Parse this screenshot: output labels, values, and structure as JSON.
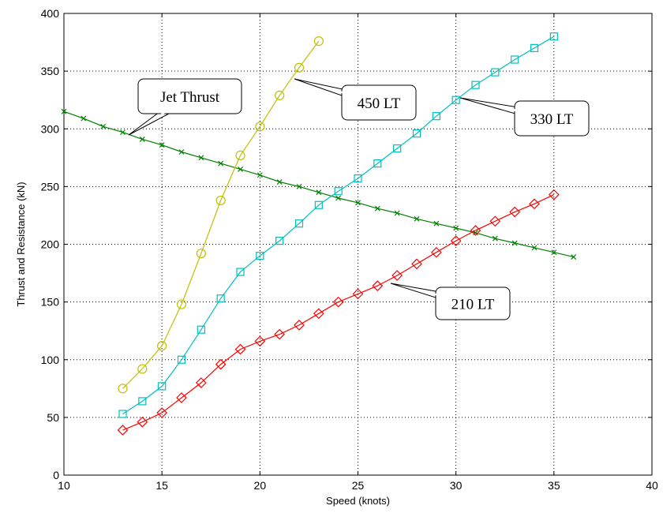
{
  "chart_data": {
    "type": "line",
    "xlabel": "Speed (knots)",
    "ylabel": "Thrust and Resistance (kN)",
    "xlim": [
      10,
      40
    ],
    "ylim": [
      0,
      400
    ],
    "xticks": [
      10,
      15,
      20,
      25,
      30,
      35,
      40
    ],
    "yticks": [
      0,
      50,
      100,
      150,
      200,
      250,
      300,
      350,
      400
    ],
    "grid": true,
    "series": [
      {
        "name": "Jet Thrust",
        "color": "#007f00",
        "marker": "x",
        "x": [
          10,
          11,
          12,
          13,
          14,
          15,
          16,
          17,
          18,
          19,
          20,
          21,
          22,
          23,
          24,
          25,
          26,
          27,
          28,
          29,
          30,
          31,
          32,
          33,
          34,
          35,
          36
        ],
        "y": [
          315,
          309,
          302,
          297,
          291,
          286,
          280,
          275,
          270,
          265,
          260,
          254,
          250,
          245,
          240,
          236,
          231,
          227,
          222,
          218,
          214,
          210,
          205,
          201,
          197,
          193,
          189
        ]
      },
      {
        "name": "450 LT",
        "color": "#bfbf00",
        "marker": "o",
        "x": [
          13,
          14,
          15,
          16,
          17,
          18,
          19,
          20,
          21,
          22,
          23
        ],
        "y": [
          75,
          92,
          112,
          148,
          192,
          238,
          277,
          302,
          329,
          353,
          376
        ]
      },
      {
        "name": "330 LT",
        "color": "#00bfbf",
        "marker": "s",
        "x": [
          13,
          14,
          15,
          16,
          17,
          18,
          19,
          20,
          21,
          22,
          23,
          24,
          25,
          26,
          27,
          28,
          29,
          30,
          31,
          32,
          33,
          34,
          35
        ],
        "y": [
          53,
          64,
          77,
          100,
          126,
          153,
          176,
          190,
          203,
          218,
          234,
          246,
          257,
          270,
          283,
          296,
          311,
          325,
          338,
          349,
          360,
          370,
          380
        ]
      },
      {
        "name": "210 LT",
        "color": "#ff0000",
        "marker": "d",
        "x": [
          13,
          14,
          15,
          16,
          17,
          18,
          19,
          20,
          21,
          22,
          23,
          24,
          25,
          26,
          27,
          28,
          29,
          30,
          31,
          32,
          33,
          34,
          35
        ],
        "y": [
          39,
          46,
          54,
          67,
          80,
          96,
          109,
          116,
          122,
          130,
          140,
          150,
          157,
          164,
          173,
          183,
          193,
          203,
          212,
          220,
          228,
          235,
          243
        ]
      }
    ],
    "annotations": [
      {
        "text": "Jet Thrust",
        "series": 0
      },
      {
        "text": "450 LT",
        "series": 1
      },
      {
        "text": "330 LT",
        "series": 2
      },
      {
        "text": "210 LT",
        "series": 3
      }
    ]
  }
}
